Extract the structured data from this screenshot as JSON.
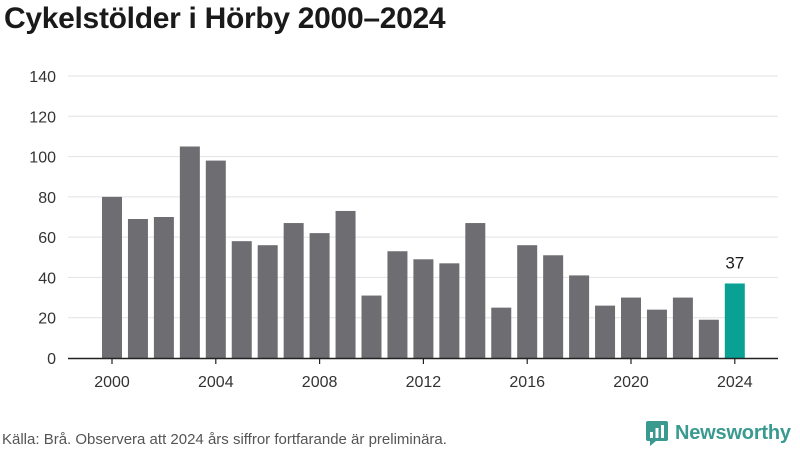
{
  "title": "Cykelstölder i Hörby 2000–2024",
  "source_text": "Källa: Brå. Observera att 2024 års siffror fortfarande är preliminära.",
  "brand": {
    "name": "Newsworthy",
    "icon": "newsworthy-chart-logo-icon"
  },
  "colors": {
    "bar": "#6e6d72",
    "highlight": "#0aa195",
    "grid": "#e2e2e2",
    "axis": "#222222",
    "brand": "#3a9a8f"
  },
  "chart_data": {
    "type": "bar",
    "title": "Cykelstölder i Hörby 2000–2024",
    "xlabel": "",
    "ylabel": "",
    "categories": [
      2000,
      2001,
      2002,
      2003,
      2004,
      2005,
      2006,
      2007,
      2008,
      2009,
      2010,
      2011,
      2012,
      2013,
      2014,
      2015,
      2016,
      2017,
      2018,
      2019,
      2020,
      2021,
      2022,
      2023,
      2024
    ],
    "values": [
      80,
      69,
      70,
      105,
      98,
      58,
      56,
      67,
      62,
      73,
      31,
      53,
      49,
      47,
      67,
      25,
      56,
      51,
      41,
      26,
      30,
      24,
      30,
      19,
      37
    ],
    "ylim": [
      0,
      140
    ],
    "yticks": [
      0,
      20,
      40,
      60,
      80,
      100,
      120,
      140
    ],
    "xticks": [
      2000,
      2004,
      2008,
      2012,
      2016,
      2020,
      2024
    ],
    "highlight_category": 2024,
    "data_labels": [
      {
        "category": 2024,
        "text": "37"
      }
    ],
    "grid": true,
    "legend": "none"
  }
}
